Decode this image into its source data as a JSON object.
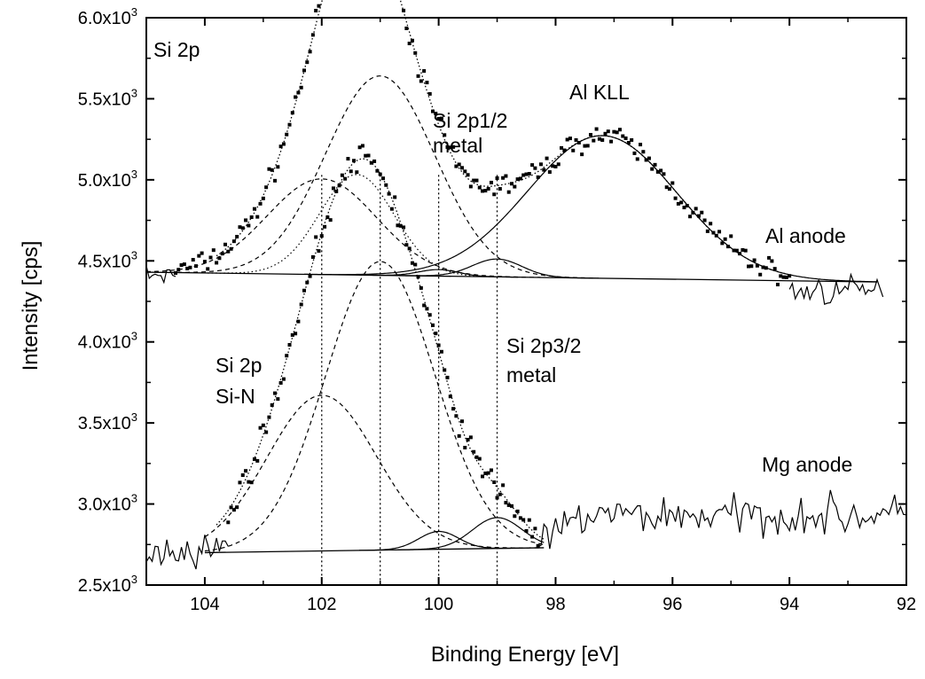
{
  "chart_data": {
    "type": "line",
    "title": "",
    "xlabel": "Binding Energy [eV]",
    "ylabel": "Intensity [cps]",
    "xlim": [
      105,
      92
    ],
    "ylim": [
      2500,
      6000
    ],
    "x_reversed": true,
    "x_ticks": [
      104,
      102,
      100,
      98,
      96,
      94,
      92
    ],
    "y_ticks": [
      {
        "value": 2500,
        "mantissa": "2.5x10",
        "exp": "3"
      },
      {
        "value": 3000,
        "mantissa": "3.0x10",
        "exp": "3"
      },
      {
        "value": 3500,
        "mantissa": "3.5x10",
        "exp": "3"
      },
      {
        "value": 4000,
        "mantissa": "4.0x10",
        "exp": "3"
      },
      {
        "value": 4500,
        "mantissa": "4.5x10",
        "exp": "3"
      },
      {
        "value": 5000,
        "mantissa": "5.0x10",
        "exp": "3"
      },
      {
        "value": 5500,
        "mantissa": "5.5x10",
        "exp": "3"
      },
      {
        "value": 6000,
        "mantissa": "6.0x10",
        "exp": "3"
      }
    ],
    "grid": false,
    "reference_lines": [
      102,
      101,
      100,
      99
    ],
    "annotations": {
      "si2p": "Si 2p",
      "al_kll": "Al KLL",
      "si2p12_l1": "Si 2p1/2",
      "si2p12_l2": "metal",
      "al_anode": "Al anode",
      "si2p32_l1": "Si 2p3/2",
      "si2p32_l2": "metal",
      "sin_l1": "Si 2p",
      "sin_l2": "Si-N",
      "mg_anode": "Mg anode"
    },
    "spectra": [
      {
        "anode": "Al anode",
        "background": {
          "x": [
            105,
            92.5
          ],
          "y": [
            4430,
            4370
          ]
        },
        "components": [
          {
            "peak": "Si 2p Si-N",
            "center": 102.0,
            "height": 590,
            "fwhm": 2.2,
            "style": "dashed"
          },
          {
            "peak": "Si 2p Si-N",
            "center": 101.0,
            "height": 1230,
            "fwhm": 2.2,
            "style": "dashed"
          },
          {
            "peak": "Si 2p metal",
            "center": 101.4,
            "height": 620,
            "fwhm": 1.5,
            "style": "dotted"
          },
          {
            "peak": "Si 2p1/2 metal",
            "center": 100.0,
            "height": 40,
            "fwhm": 0.8,
            "style": "solid"
          },
          {
            "peak": "Si 2p3/2 metal",
            "center": 99.0,
            "height": 110,
            "fwhm": 1.0,
            "style": "solid"
          },
          {
            "peak": "Al KLL",
            "center": 97.2,
            "height": 880,
            "fwhm": 3.0,
            "style": "solid"
          }
        ],
        "envelope_peak": {
          "x": 101.0,
          "y": 5880
        }
      },
      {
        "anode": "Mg anode",
        "background": {
          "x": [
            104,
            98.2
          ],
          "y": [
            2700,
            2730
          ]
        },
        "components": [
          {
            "peak": "Si 2p Si-N",
            "center": 102.0,
            "height": 960,
            "fwhm": 2.2,
            "style": "dashed"
          },
          {
            "peak": "Si 2p Si-N",
            "center": 101.0,
            "height": 1780,
            "fwhm": 2.2,
            "style": "dashed"
          },
          {
            "peak": "Si 2p1/2 metal",
            "center": 100.0,
            "height": 110,
            "fwhm": 0.8,
            "style": "solid"
          },
          {
            "peak": "Si 2p3/2 metal",
            "center": 99.0,
            "height": 190,
            "fwhm": 1.0,
            "style": "solid"
          }
        ],
        "flat_region": {
          "x": [
            98.2,
            92
          ],
          "level": 2930
        },
        "envelope_peak": {
          "x": 101.2,
          "y": 4920
        }
      }
    ]
  }
}
